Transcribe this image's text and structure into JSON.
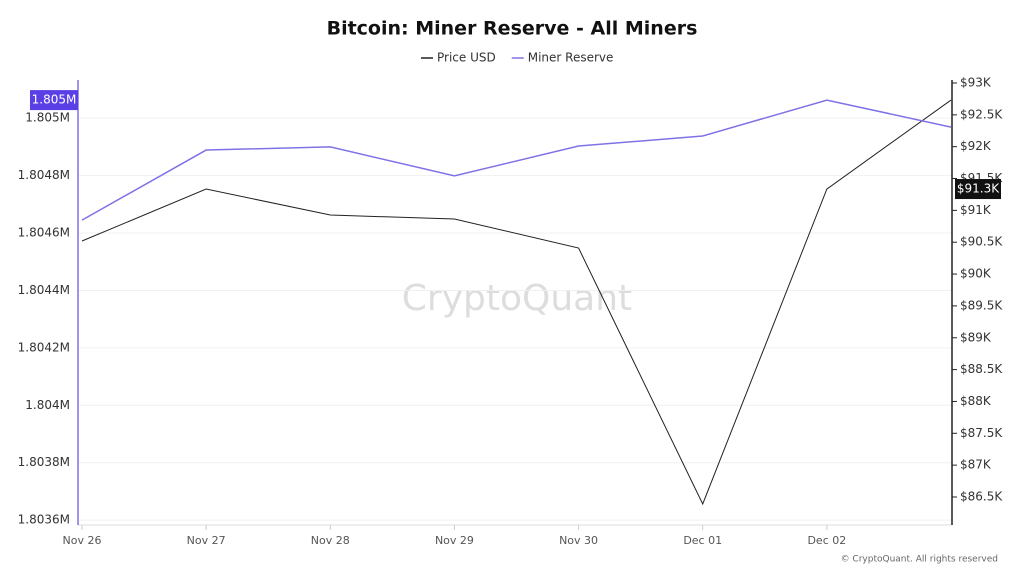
{
  "chart_data": {
    "type": "line",
    "title": "Bitcoin: Miner Reserve - All Miners",
    "watermark": "CryptoQuant",
    "copyright": "© CryptoQuant. All rights reserved",
    "categories": [
      "Nov 26",
      "Nov 27",
      "Nov 28",
      "Nov 29",
      "Nov 30",
      "Dec 01",
      "Dec 02",
      null
    ],
    "series": [
      {
        "name": "Price USD",
        "color": "#222222",
        "axis": "y2",
        "values": [
          90519,
          91335,
          90927,
          90864,
          90409,
          86390,
          91335,
          92732
        ],
        "value_labels": [
          null,
          null,
          null,
          null,
          null,
          null,
          "$91.3K",
          null
        ]
      },
      {
        "name": "Miner Reserve",
        "color": "#7f72e6",
        "values": [
          1804645,
          1804889,
          1804900,
          1804799,
          1804903,
          1804938,
          1805063,
          1804969
        ],
        "value_labels": [
          null,
          null,
          null,
          null,
          null,
          null,
          "1.805M",
          null
        ]
      }
    ],
    "ylim": [
      1803583,
      1805133
    ],
    "yticks": [
      {
        "value": 1803600,
        "label": "1.8036M"
      },
      {
        "value": 1803800,
        "label": "1.8038M"
      },
      {
        "value": 1804000,
        "label": "1.804M"
      },
      {
        "value": 1804200,
        "label": "1.8042M"
      },
      {
        "value": 1804400,
        "label": "1.8044M"
      },
      {
        "value": 1804600,
        "label": "1.8046M"
      },
      {
        "value": 1804800,
        "label": "1.8048M"
      },
      {
        "value": 1805000,
        "label": "1.805M"
      }
    ],
    "y2lim": [
      86060,
      93047
    ],
    "y2ticks": [
      {
        "value": 86500,
        "label": "$86.5K"
      },
      {
        "value": 87000,
        "label": "$87K"
      },
      {
        "value": 87500,
        "label": "$87.5K"
      },
      {
        "value": 88000,
        "label": "$88K"
      },
      {
        "value": 88500,
        "label": "$88.5K"
      },
      {
        "value": 89000,
        "label": "$89K"
      },
      {
        "value": 89500,
        "label": "$89.5K"
      },
      {
        "value": 90000,
        "label": "$90K"
      },
      {
        "value": 90500,
        "label": "$90.5K"
      },
      {
        "value": 91000,
        "label": "$91K"
      },
      {
        "value": 91500,
        "label": "$91.5K"
      },
      {
        "value": 92000,
        "label": "$92K"
      },
      {
        "value": 92500,
        "label": "$92.5K"
      },
      {
        "value": 93000,
        "label": "$93K"
      }
    ],
    "grid": true
  }
}
